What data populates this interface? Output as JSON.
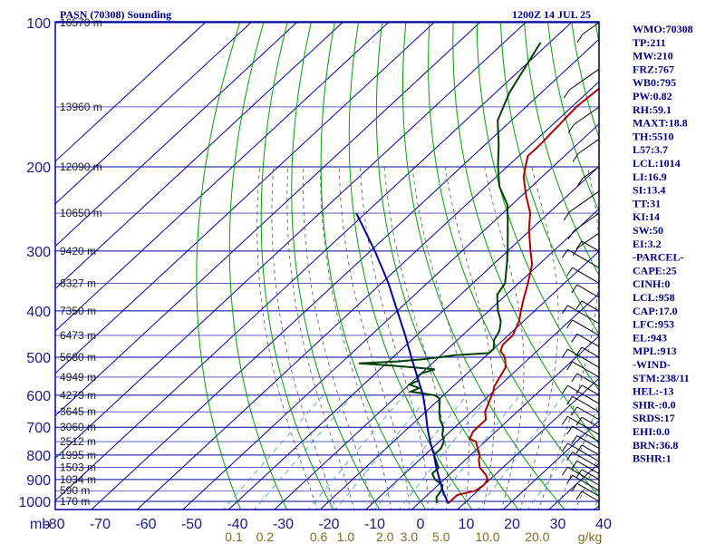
{
  "header": {
    "title": "PASN (70308) Sounding",
    "time": "1200Z 14 JUL 25"
  },
  "chart_data": {
    "type": "skew-t",
    "pressure_unit_label": "mb",
    "pressure_ticks": [
      100,
      200,
      300,
      400,
      500,
      600,
      700,
      800,
      900,
      1000
    ],
    "temperature_ticks": [
      "-80",
      "-70",
      "-60",
      "-50",
      "-40",
      "-30",
      "-20",
      "-10",
      "0",
      "10",
      "20",
      "30",
      "40"
    ],
    "mixing_ratio_labels": [
      "0.1",
      "0.2",
      "0.6",
      "1.0",
      "2.0",
      "3.0",
      "5.0",
      "10.0",
      "20.0"
    ],
    "mixing_ratio_unit": "g/kg",
    "height_labels": [
      {
        "p": 100,
        "text": "16570 m"
      },
      {
        "p": 150,
        "text": "13960 m"
      },
      {
        "p": 200,
        "text": "12090 m"
      },
      {
        "p": 250,
        "text": "10650 m"
      },
      {
        "p": 300,
        "text": "9420 m"
      },
      {
        "p": 350,
        "text": "8327 m"
      },
      {
        "p": 400,
        "text": "7350 m"
      },
      {
        "p": 450,
        "text": "6473 m"
      },
      {
        "p": 500,
        "text": "5680 m"
      },
      {
        "p": 550,
        "text": "4949 m"
      },
      {
        "p": 600,
        "text": "4273 m"
      },
      {
        "p": 650,
        "text": "3645 m"
      },
      {
        "p": 700,
        "text": "3060 m"
      },
      {
        "p": 750,
        "text": "2512 m"
      },
      {
        "p": 800,
        "text": "1995 m"
      },
      {
        "p": 850,
        "text": "1503 m"
      },
      {
        "p": 900,
        "text": "1034 m"
      },
      {
        "p": 950,
        "text": "590 m"
      },
      {
        "p": 1000,
        "text": "170 m"
      }
    ],
    "series": [
      {
        "color": "#b00000",
        "points": [
          [
            1009,
            6.5
          ],
          [
            970,
            6.5
          ],
          [
            950,
            9.5
          ],
          [
            925,
            10
          ],
          [
            900,
            9.5
          ],
          [
            880,
            8
          ],
          [
            850,
            5
          ],
          [
            820,
            3
          ],
          [
            800,
            2
          ],
          [
            775,
            0
          ],
          [
            750,
            -2
          ],
          [
            740,
            -4
          ],
          [
            715,
            -5
          ],
          [
            700,
            -5
          ],
          [
            675,
            -5
          ],
          [
            650,
            -7
          ],
          [
            630,
            -8
          ],
          [
            610,
            -9
          ],
          [
            590,
            -10
          ],
          [
            575,
            -11
          ],
          [
            550,
            -12
          ],
          [
            525,
            -13
          ],
          [
            505,
            -15
          ],
          [
            497,
            -16
          ],
          [
            485,
            -18
          ],
          [
            470,
            -19
          ],
          [
            450,
            -19
          ],
          [
            420,
            -21
          ],
          [
            400,
            -23
          ],
          [
            380,
            -25
          ],
          [
            350,
            -28
          ],
          [
            320,
            -31.5
          ],
          [
            300,
            -35
          ],
          [
            270,
            -40.5
          ],
          [
            250,
            -44
          ],
          [
            230,
            -49
          ],
          [
            210,
            -54
          ],
          [
            200,
            -56
          ],
          [
            190,
            -58
          ],
          [
            180,
            -58
          ],
          [
            150,
            -59
          ],
          [
            130,
            -58
          ],
          [
            112,
            -58
          ],
          [
            100,
            -57
          ]
        ]
      },
      {
        "color": "#004000",
        "points": [
          [
            1009,
            4
          ],
          [
            980,
            2.5
          ],
          [
            950,
            2
          ],
          [
            925,
            1
          ],
          [
            900,
            -2
          ],
          [
            875,
            -4
          ],
          [
            850,
            -4
          ],
          [
            825,
            -6
          ],
          [
            800,
            -8
          ],
          [
            775,
            -8
          ],
          [
            750,
            -9
          ],
          [
            725,
            -11
          ],
          [
            700,
            -12.5
          ],
          [
            675,
            -15
          ],
          [
            650,
            -17
          ],
          [
            630,
            -18.5
          ],
          [
            610,
            -20
          ],
          [
            600,
            -22
          ],
          [
            595,
            -25
          ],
          [
            590,
            -28
          ],
          [
            580,
            -27
          ],
          [
            570,
            -30
          ],
          [
            560,
            -29
          ],
          [
            550,
            -30
          ],
          [
            540,
            -30
          ],
          [
            530,
            -28
          ],
          [
            525,
            -33
          ],
          [
            520,
            -39
          ],
          [
            515,
            -46
          ],
          [
            510,
            -38
          ],
          [
            505,
            -33
          ],
          [
            500,
            -30
          ],
          [
            495,
            -27
          ],
          [
            490,
            -20
          ],
          [
            480,
            -20
          ],
          [
            460,
            -22
          ],
          [
            440,
            -23
          ],
          [
            420,
            -25
          ],
          [
            400,
            -28
          ],
          [
            370,
            -32
          ],
          [
            350,
            -33
          ],
          [
            320,
            -37
          ],
          [
            300,
            -40
          ],
          [
            260,
            -47
          ],
          [
            240,
            -51
          ],
          [
            220,
            -57
          ],
          [
            200,
            -62
          ],
          [
            180,
            -67
          ],
          [
            160,
            -73
          ],
          [
            140,
            -77
          ],
          [
            110,
            -82
          ]
        ]
      },
      {
        "color": "#0000a0",
        "points": [
          [
            1009,
            6.5
          ],
          [
            960,
            3
          ],
          [
            900,
            -1
          ],
          [
            850,
            -4.5
          ],
          [
            800,
            -8
          ],
          [
            750,
            -12
          ],
          [
            700,
            -16
          ],
          [
            650,
            -20
          ],
          [
            600,
            -24.5
          ],
          [
            550,
            -30
          ],
          [
            500,
            -36
          ],
          [
            450,
            -42.5
          ],
          [
            400,
            -50
          ],
          [
            350,
            -58.5
          ],
          [
            300,
            -69
          ],
          [
            250,
            -82
          ]
        ]
      }
    ]
  },
  "indices": [
    "WMO:70308",
    "TP:211",
    "MW:210",
    "FRZ:767",
    "WB0:795",
    "PW:0.82",
    "RH:59.1",
    "MAXT:18.8",
    "TH:5510",
    "L57:3.7",
    "LCL:1014",
    "LI:16.9",
    "SI:13.4",
    "TT:31",
    "KI:14",
    "SW:50",
    "EI:3.2",
    "-PARCEL-",
    "CAPE:25",
    "CINH:0",
    "LCL:958",
    "CAP:17.0",
    "LFC:953",
    "EL:943",
    "MPL:913",
    "-WIND-",
    "STM:238/11",
    "HEL:-13",
    "SHR-:0.0",
    "SRDS:17",
    "EHI:0.0",
    "BRN:36.8",
    "BSHR:1"
  ],
  "colors": {
    "isobar": "#0000a0",
    "isotherm": "#0000a0",
    "dry_adiabat": "#00a000",
    "moist_adiabat": "#555555",
    "mixing_ratio": "#3399cc",
    "wind_barb": "#000000"
  }
}
